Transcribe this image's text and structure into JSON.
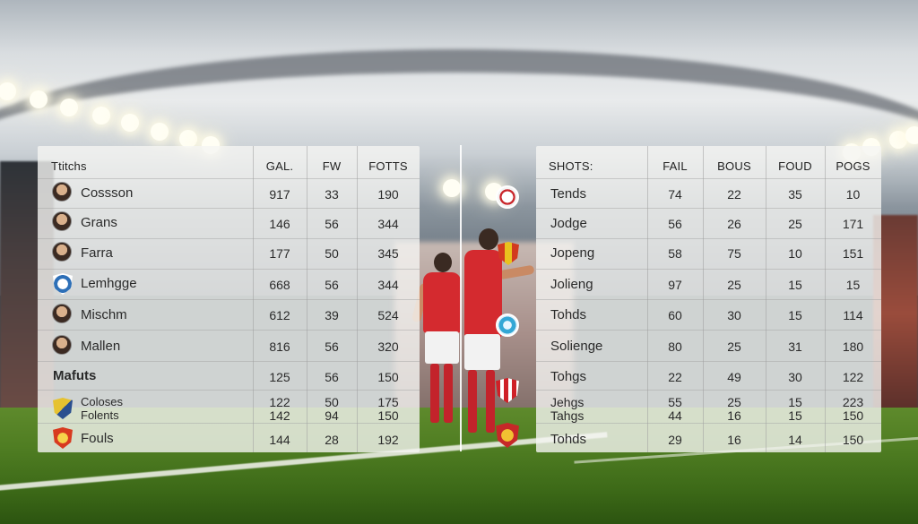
{
  "left_table": {
    "headers": [
      "Ttitchs",
      "GAL.",
      "FW",
      "FOTTS"
    ],
    "rows": [
      {
        "name": "Cossson",
        "v1": "917",
        "v2": "33",
        "v3": "190",
        "icon": "player-avatar"
      },
      {
        "name": "Grans",
        "v1": "146",
        "v2": "56",
        "v3": "344",
        "icon": "player-avatar"
      },
      {
        "name": "Farra",
        "v1": "177",
        "v2": "50",
        "v3": "345",
        "icon": "player-avatar"
      },
      {
        "name": "Lemhgge",
        "v1": "668",
        "v2": "56",
        "v3": "344",
        "icon": "club-crest"
      },
      {
        "name": "Mischm",
        "v1": "612",
        "v2": "39",
        "v3": "524",
        "icon": "player-avatar"
      },
      {
        "name": "Mallen",
        "v1": "816",
        "v2": "56",
        "v3": "320",
        "icon": "player-avatar"
      },
      {
        "name": "Mafuts",
        "v1": "125",
        "v2": "56",
        "v3": "150",
        "icon": ""
      },
      {
        "name": "Coloses",
        "v1": "122",
        "v2": "50",
        "v3": "175",
        "icon": "club-crest"
      },
      {
        "name": "Folents",
        "v1": "142",
        "v2": "94",
        "v3": "150",
        "icon": ""
      },
      {
        "name": "Fouls",
        "v1": "144",
        "v2": "28",
        "v3": "192",
        "icon": "club-crest"
      }
    ]
  },
  "right_table": {
    "headers": [
      "SHOTS:",
      "FAIL",
      "BOUS",
      "FOUD",
      "POGS"
    ],
    "rows": [
      {
        "name": "Tends",
        "v1": "74",
        "v2": "22",
        "v3": "35",
        "v4": "10"
      },
      {
        "name": "Jodge",
        "v1": "56",
        "v2": "26",
        "v3": "25",
        "v4": "171"
      },
      {
        "name": "Jopeng",
        "v1": "58",
        "v2": "75",
        "v3": "10",
        "v4": "151"
      },
      {
        "name": "Jolieng",
        "v1": "97",
        "v2": "25",
        "v3": "15",
        "v4": "15"
      },
      {
        "name": "Tohds",
        "v1": "60",
        "v2": "30",
        "v3": "15",
        "v4": "114"
      },
      {
        "name": "Solienge",
        "v1": "80",
        "v2": "25",
        "v3": "31",
        "v4": "180"
      },
      {
        "name": "Tohgs",
        "v1": "22",
        "v2": "49",
        "v3": "30",
        "v4": "122"
      },
      {
        "name": "Jehgs",
        "v1": "55",
        "v2": "25",
        "v3": "15",
        "v4": "223"
      },
      {
        "name": "Tahgs",
        "v1": "44",
        "v2": "16",
        "v3": "15",
        "v4": "150"
      },
      {
        "name": "Tohds",
        "v1": "29",
        "v2": "16",
        "v3": "14",
        "v4": "150"
      }
    ]
  },
  "colors": {
    "panel_bg": "#f5f5f2",
    "jersey_red": "#d42a2f",
    "pitch_green": "#4f7d22"
  }
}
